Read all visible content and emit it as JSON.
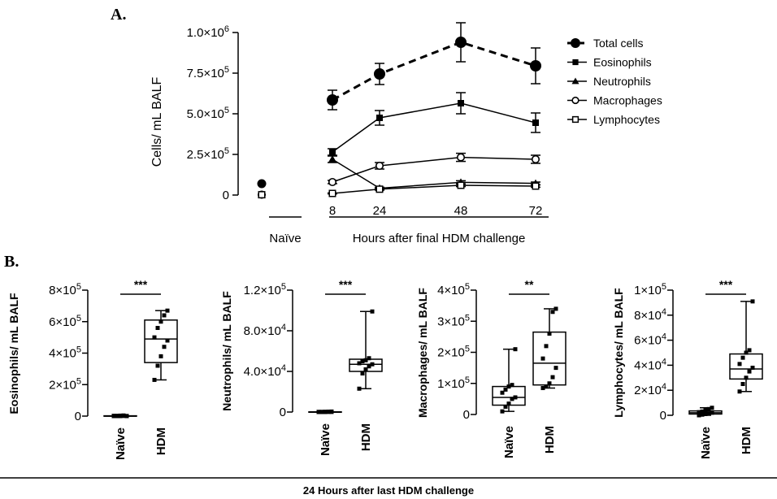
{
  "chart_data": [
    {
      "type": "line",
      "panel_label": "A.",
      "ylabel": "Cells/ mL BALF",
      "xlabel": "Hours after final HDM challenge",
      "naive_label": "Naïve",
      "x": [
        8,
        24,
        48,
        72
      ],
      "x_tick_labels": [
        "8",
        "24",
        "48",
        "72"
      ],
      "ylim": [
        0,
        1000000
      ],
      "y_ticks": [
        0,
        250000,
        500000,
        750000,
        1000000
      ],
      "y_tick_labels": [
        {
          "base": "0",
          "exp": ""
        },
        {
          "base": "2.5×10",
          "exp": "5"
        },
        {
          "base": "5.0×10",
          "exp": "5"
        },
        {
          "base": "7.5×10",
          "exp": "5"
        },
        {
          "base": "1.0×10",
          "exp": "6"
        }
      ],
      "legend_position": "top-right",
      "series": [
        {
          "name": "Total cells",
          "marker": "filled-circle",
          "dashed": true,
          "naive": 70000,
          "values": [
            585000,
            745000,
            940000,
            795000
          ],
          "errors": [
            60000,
            65000,
            120000,
            110000
          ]
        },
        {
          "name": "Eosinophils",
          "marker": "filled-square",
          "dashed": false,
          "naive": 2000,
          "values": [
            265000,
            475000,
            565000,
            445000
          ],
          "errors": [
            20000,
            45000,
            65000,
            60000
          ]
        },
        {
          "name": "Neutrophils",
          "marker": "filled-triangle",
          "dashed": false,
          "naive": 2000,
          "values": [
            220000,
            42000,
            78000,
            72000
          ],
          "errors": [
            20000,
            6000,
            10000,
            8000
          ]
        },
        {
          "name": "Macrophages",
          "marker": "open-circle",
          "dashed": false,
          "naive": 2000,
          "values": [
            80000,
            180000,
            232000,
            220000
          ],
          "errors": [
            10000,
            20000,
            25000,
            25000
          ]
        },
        {
          "name": "Lymphocytes",
          "marker": "open-square",
          "dashed": false,
          "naive": 2000,
          "values": [
            10000,
            36000,
            60000,
            55000
          ],
          "errors": [
            3000,
            6000,
            8000,
            7000
          ]
        }
      ]
    },
    {
      "type": "box",
      "panel_label": "B.",
      "ylabel": "Eosinophils/ mL BALF",
      "ylim": [
        0,
        800000
      ],
      "y_ticks": [
        0,
        200000,
        400000,
        600000,
        800000
      ],
      "y_tick_labels": [
        {
          "base": "0",
          "exp": ""
        },
        {
          "base": "2×10",
          "exp": "5"
        },
        {
          "base": "4×10",
          "exp": "5"
        },
        {
          "base": "6×10",
          "exp": "5"
        },
        {
          "base": "8×10",
          "exp": "5"
        }
      ],
      "significance": "***",
      "groups": [
        {
          "name": "Naïve",
          "min": 0,
          "q1": 0,
          "median": 0,
          "q3": 2000,
          "max": 4000,
          "points": [
            0,
            0,
            0,
            1000,
            1000,
            2000,
            2000,
            3000,
            4000,
            0
          ]
        },
        {
          "name": "HDM",
          "min": 230000,
          "q1": 340000,
          "median": 490000,
          "q3": 610000,
          "max": 670000,
          "points": [
            230000,
            320000,
            380000,
            440000,
            480000,
            500000,
            560000,
            600000,
            640000,
            670000
          ]
        }
      ]
    },
    {
      "type": "box",
      "ylabel": "Neutrophils/ mL BALF",
      "ylim": [
        0,
        120000
      ],
      "y_ticks": [
        0,
        40000,
        80000,
        120000
      ],
      "y_tick_labels": [
        {
          "base": "0",
          "exp": ""
        },
        {
          "base": "4.0×10",
          "exp": "4"
        },
        {
          "base": "8.0×10",
          "exp": "4"
        },
        {
          "base": "1.2×10",
          "exp": "5"
        }
      ],
      "significance": "***",
      "groups": [
        {
          "name": "Naïve",
          "min": 0,
          "q1": 0,
          "median": 0,
          "q3": 200,
          "max": 500,
          "points": [
            0,
            0,
            0,
            100,
            100,
            200,
            200,
            300,
            400,
            500
          ]
        },
        {
          "name": "HDM",
          "min": 23000,
          "q1": 40000,
          "median": 47000,
          "q3": 52000,
          "max": 99000,
          "points": [
            23000,
            38000,
            42000,
            45000,
            47000,
            48000,
            50000,
            51000,
            53000,
            99000
          ]
        }
      ]
    },
    {
      "type": "box",
      "ylabel": "Macrophages/ mL BALF",
      "ylim": [
        0,
        400000
      ],
      "y_ticks": [
        0,
        100000,
        200000,
        300000,
        400000
      ],
      "y_tick_labels": [
        {
          "base": "0",
          "exp": ""
        },
        {
          "base": "1×10",
          "exp": "5"
        },
        {
          "base": "2×10",
          "exp": "5"
        },
        {
          "base": "3×10",
          "exp": "5"
        },
        {
          "base": "4×10",
          "exp": "5"
        }
      ],
      "significance": "**",
      "groups": [
        {
          "name": "Naïve",
          "min": 10000,
          "q1": 30000,
          "median": 55000,
          "q3": 90000,
          "max": 210000,
          "points": [
            10000,
            25000,
            35000,
            50000,
            55000,
            70000,
            80000,
            90000,
            95000,
            210000
          ]
        },
        {
          "name": "HDM",
          "min": 85000,
          "q1": 95000,
          "median": 165000,
          "q3": 265000,
          "max": 340000,
          "points": [
            85000,
            90000,
            100000,
            120000,
            150000,
            180000,
            220000,
            260000,
            330000,
            340000
          ]
        }
      ]
    },
    {
      "type": "box",
      "ylabel": "Lymphocytes/ mL BALF",
      "ylim": [
        0,
        100000
      ],
      "y_ticks": [
        0,
        20000,
        40000,
        60000,
        80000,
        100000
      ],
      "y_tick_labels": [
        {
          "base": "0",
          "exp": ""
        },
        {
          "base": "2×10",
          "exp": "4"
        },
        {
          "base": "4×10",
          "exp": "4"
        },
        {
          "base": "6×10",
          "exp": "4"
        },
        {
          "base": "8×10",
          "exp": "4"
        },
        {
          "base": "1×10",
          "exp": "5"
        }
      ],
      "significance": "***",
      "groups": [
        {
          "name": "Naïve",
          "min": 0,
          "q1": 1000,
          "median": 2000,
          "q3": 3500,
          "max": 6000,
          "points": [
            0,
            500,
            1000,
            1500,
            2000,
            2500,
            3000,
            4000,
            5000,
            6000
          ]
        },
        {
          "name": "HDM",
          "min": 19000,
          "q1": 29000,
          "median": 37000,
          "q3": 49000,
          "max": 91000,
          "points": [
            19000,
            25000,
            30000,
            35000,
            38000,
            41000,
            46000,
            50000,
            52000,
            91000
          ]
        }
      ]
    }
  ],
  "footer_label": "24 Hours after last HDM challenge"
}
